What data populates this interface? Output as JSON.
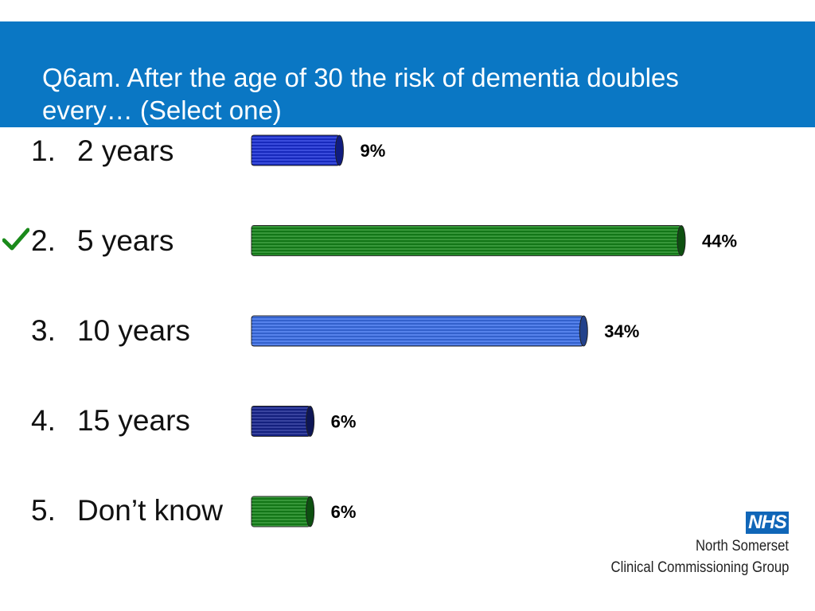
{
  "title": "Q6am. After the age of 30 the risk of dementia doubles every… (Select one)",
  "options": [
    {
      "num": "1.",
      "label": "2 years",
      "correct": false
    },
    {
      "num": "2.",
      "label": "5 years",
      "correct": true
    },
    {
      "num": "3.",
      "label": "10 years",
      "correct": false
    },
    {
      "num": "4.",
      "label": "15 years",
      "correct": false
    },
    {
      "num": "5.",
      "label": "Don’t know",
      "correct": false
    }
  ],
  "correct_icon": "checkmark-icon",
  "chart_data": {
    "type": "bar",
    "orientation": "horizontal",
    "categories": [
      "2 years",
      "5 years",
      "10 years",
      "15 years",
      "Don’t know"
    ],
    "values": [
      9,
      44,
      34,
      6,
      6
    ],
    "value_labels": [
      "9%",
      "44%",
      "34%",
      "6%",
      "6%"
    ],
    "colors": [
      "#1a2fd6",
      "#16861a",
      "#3a6ee8",
      "#17248f",
      "#16861a"
    ],
    "xlim": [
      0,
      44
    ],
    "grid": false,
    "legend": "none"
  },
  "logo": {
    "badge": "NHS",
    "line1": "North Somerset",
    "line2": "Clinical Commissioning Group"
  },
  "colors": {
    "header": "#0a77c4",
    "check": "#1a8a1a",
    "nhs_blue": "#1066b8"
  }
}
